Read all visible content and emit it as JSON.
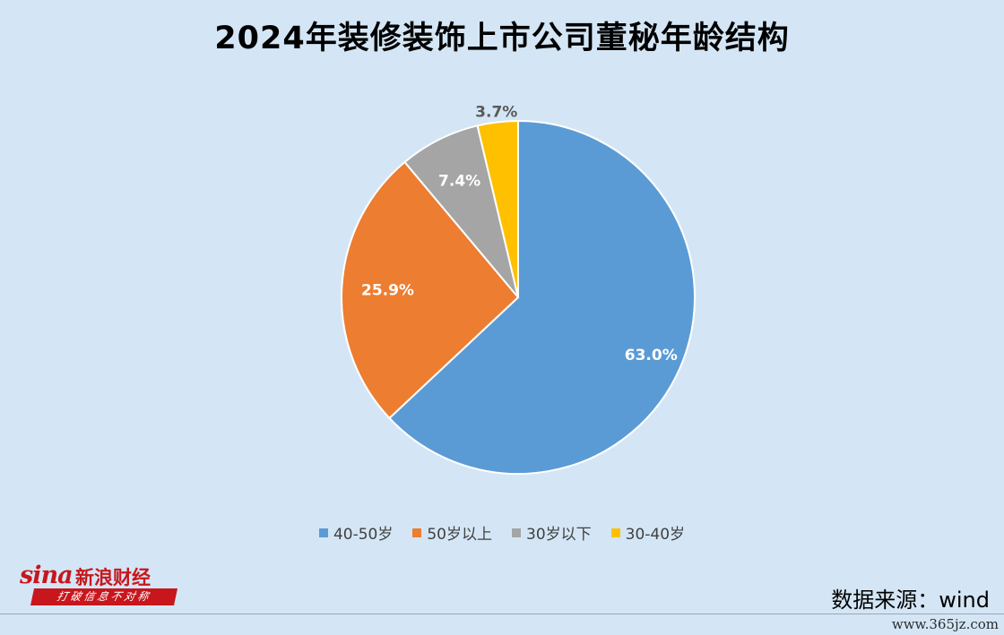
{
  "title": "2024年装修装饰上市公司董秘年龄结构",
  "chart_data": {
    "type": "pie",
    "title": "2024年装修装饰上市公司董秘年龄结构",
    "slices": [
      {
        "label": "40-50岁",
        "value": 63.0,
        "display": "63.0%",
        "color": "#5b9bd5"
      },
      {
        "label": "50岁以上",
        "value": 25.9,
        "display": "25.9%",
        "color": "#ed7d31"
      },
      {
        "label": "30岁以下",
        "value": 7.4,
        "display": "7.4%",
        "color": "#a5a5a5"
      },
      {
        "label": "30-40岁",
        "value": 3.7,
        "display": "3.7%",
        "color": "#ffc000"
      }
    ],
    "legend_position": "bottom"
  },
  "logo": {
    "mark": "sina",
    "name": "新浪财经",
    "slogan": "打破信息不对称"
  },
  "source": "数据来源：wind",
  "watermark": "www.365jz.com"
}
